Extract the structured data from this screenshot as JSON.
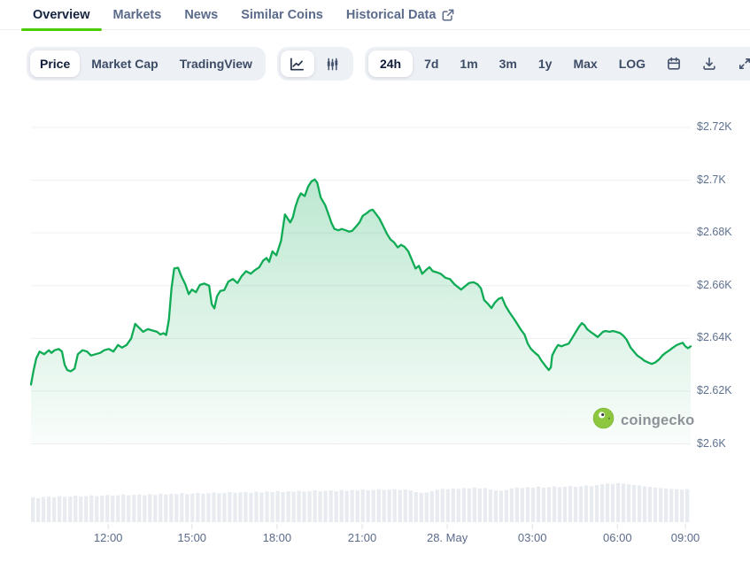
{
  "accent_green": "#4BCC00",
  "nav": {
    "tabs": [
      {
        "label": "Overview",
        "active": true
      },
      {
        "label": "Markets",
        "active": false
      },
      {
        "label": "News",
        "active": false
      },
      {
        "label": "Similar Coins",
        "active": false
      },
      {
        "label": "Historical Data",
        "active": false,
        "external_link": true
      }
    ]
  },
  "toolbar": {
    "metric_tabs": [
      {
        "label": "Price",
        "active": true
      },
      {
        "label": "Market Cap",
        "active": false
      },
      {
        "label": "TradingView",
        "active": false
      }
    ],
    "chart_types": [
      {
        "name": "line-chart",
        "active": true
      },
      {
        "name": "candlestick-chart",
        "active": false
      }
    ],
    "ranges": [
      {
        "label": "24h",
        "active": true
      },
      {
        "label": "7d",
        "active": false
      },
      {
        "label": "1m",
        "active": false
      },
      {
        "label": "3m",
        "active": false
      },
      {
        "label": "1y",
        "active": false
      },
      {
        "label": "Max",
        "active": false
      },
      {
        "label": "LOG",
        "active": false
      }
    ],
    "icon_buttons": [
      "calendar",
      "download",
      "expand"
    ]
  },
  "watermark": {
    "text": "coingecko"
  },
  "chart_data": {
    "type": "line",
    "title": "",
    "currency": "USD",
    "range": "24h",
    "line_color": "#0fab55",
    "fill_color": "#0fab55",
    "volume_color": "#e8ecf1",
    "grid_color": "#eef0f3",
    "ylim": [
      2596,
      2728
    ],
    "y_ticks": [
      "$2.72K",
      "$2.7K",
      "$2.68K",
      "$2.66K",
      "$2.64K",
      "$2.62K",
      "$2.6K"
    ],
    "y_tick_values": [
      2720,
      2700,
      2680,
      2660,
      2640,
      2620,
      2600
    ],
    "x_labels": [
      "12:00",
      "15:00",
      "18:00",
      "21:00",
      "28. May",
      "03:00",
      "06:00",
      "09:00"
    ],
    "x_label_t": [
      0.117,
      0.244,
      0.373,
      0.502,
      0.631,
      0.76,
      0.889,
      0.992
    ],
    "price_series": [
      [
        0.0,
        2622.5
      ],
      [
        0.004,
        2628.0
      ],
      [
        0.008,
        2632.5
      ],
      [
        0.013,
        2635.0
      ],
      [
        0.02,
        2634.0
      ],
      [
        0.027,
        2635.5
      ],
      [
        0.031,
        2634.5
      ],
      [
        0.036,
        2635.5
      ],
      [
        0.042,
        2636.0
      ],
      [
        0.047,
        2635.0
      ],
      [
        0.051,
        2630.0
      ],
      [
        0.055,
        2628.0
      ],
      [
        0.06,
        2627.5
      ],
      [
        0.066,
        2628.5
      ],
      [
        0.071,
        2634.0
      ],
      [
        0.078,
        2635.5
      ],
      [
        0.085,
        2635.0
      ],
      [
        0.091,
        2633.5
      ],
      [
        0.098,
        2634.0
      ],
      [
        0.105,
        2634.5
      ],
      [
        0.111,
        2635.5
      ],
      [
        0.118,
        2636.0
      ],
      [
        0.125,
        2635.0
      ],
      [
        0.132,
        2637.5
      ],
      [
        0.138,
        2636.5
      ],
      [
        0.145,
        2637.5
      ],
      [
        0.152,
        2640.0
      ],
      [
        0.158,
        2645.5
      ],
      [
        0.164,
        2644.0
      ],
      [
        0.17,
        2642.5
      ],
      [
        0.177,
        2643.5
      ],
      [
        0.184,
        2643.0
      ],
      [
        0.191,
        2642.5
      ],
      [
        0.196,
        2641.5
      ],
      [
        0.201,
        2642.0
      ],
      [
        0.205,
        2641.3
      ],
      [
        0.209,
        2647.0
      ],
      [
        0.213,
        2659.0
      ],
      [
        0.217,
        2666.5
      ],
      [
        0.223,
        2666.8
      ],
      [
        0.228,
        2663.5
      ],
      [
        0.234,
        2660.5
      ],
      [
        0.239,
        2656.8
      ],
      [
        0.244,
        2658.5
      ],
      [
        0.25,
        2657.5
      ],
      [
        0.256,
        2660.3
      ],
      [
        0.263,
        2660.8
      ],
      [
        0.27,
        2660.0
      ],
      [
        0.274,
        2653.0
      ],
      [
        0.278,
        2651.4
      ],
      [
        0.282,
        2656.0
      ],
      [
        0.287,
        2658.0
      ],
      [
        0.293,
        2658.3
      ],
      [
        0.299,
        2661.5
      ],
      [
        0.306,
        2662.5
      ],
      [
        0.313,
        2661.0
      ],
      [
        0.319,
        2663.5
      ],
      [
        0.326,
        2665.5
      ],
      [
        0.333,
        2664.5
      ],
      [
        0.34,
        2666.0
      ],
      [
        0.346,
        2667.0
      ],
      [
        0.352,
        2669.5
      ],
      [
        0.357,
        2670.5
      ],
      [
        0.361,
        2669.0
      ],
      [
        0.366,
        2673.0
      ],
      [
        0.372,
        2671.5
      ],
      [
        0.379,
        2677.0
      ],
      [
        0.385,
        2687.0
      ],
      [
        0.389,
        2685.5
      ],
      [
        0.393,
        2684.0
      ],
      [
        0.397,
        2686.0
      ],
      [
        0.401,
        2690.0
      ],
      [
        0.405,
        2693.0
      ],
      [
        0.409,
        2695.0
      ],
      [
        0.415,
        2694.0
      ],
      [
        0.42,
        2697.5
      ],
      [
        0.425,
        2699.5
      ],
      [
        0.43,
        2700.3
      ],
      [
        0.434,
        2699.0
      ],
      [
        0.439,
        2693.5
      ],
      [
        0.446,
        2690.5
      ],
      [
        0.451,
        2687.0
      ],
      [
        0.456,
        2683.5
      ],
      [
        0.46,
        2681.5
      ],
      [
        0.466,
        2681.0
      ],
      [
        0.471,
        2681.5
      ],
      [
        0.477,
        2681.0
      ],
      [
        0.482,
        2680.5
      ],
      [
        0.487,
        2680.8
      ],
      [
        0.493,
        2682.5
      ],
      [
        0.498,
        2684.0
      ],
      [
        0.503,
        2686.5
      ],
      [
        0.509,
        2687.5
      ],
      [
        0.514,
        2688.5
      ],
      [
        0.518,
        2688.8
      ],
      [
        0.522,
        2687.5
      ],
      [
        0.528,
        2685.5
      ],
      [
        0.533,
        2683.0
      ],
      [
        0.54,
        2679.5
      ],
      [
        0.545,
        2677.5
      ],
      [
        0.55,
        2676.5
      ],
      [
        0.556,
        2674.5
      ],
      [
        0.561,
        2675.5
      ],
      [
        0.566,
        2674.8
      ],
      [
        0.572,
        2673.0
      ],
      [
        0.577,
        2670.0
      ],
      [
        0.583,
        2666.5
      ],
      [
        0.588,
        2667.5
      ],
      [
        0.593,
        2664.5
      ],
      [
        0.599,
        2666.0
      ],
      [
        0.604,
        2667.0
      ],
      [
        0.609,
        2665.5
      ],
      [
        0.616,
        2665.0
      ],
      [
        0.621,
        2664.5
      ],
      [
        0.628,
        2663.0
      ],
      [
        0.635,
        2662.5
      ],
      [
        0.642,
        2660.5
      ],
      [
        0.647,
        2659.5
      ],
      [
        0.652,
        2658.5
      ],
      [
        0.659,
        2660.0
      ],
      [
        0.664,
        2661.0
      ],
      [
        0.671,
        2661.3
      ],
      [
        0.677,
        2660.5
      ],
      [
        0.682,
        2659.0
      ],
      [
        0.687,
        2654.5
      ],
      [
        0.693,
        2653.0
      ],
      [
        0.698,
        2651.5
      ],
      [
        0.703,
        2653.5
      ],
      [
        0.709,
        2655.0
      ],
      [
        0.714,
        2655.5
      ],
      [
        0.719,
        2652.5
      ],
      [
        0.725,
        2650.0
      ],
      [
        0.732,
        2647.5
      ],
      [
        0.737,
        2645.5
      ],
      [
        0.742,
        2643.5
      ],
      [
        0.748,
        2641.5
      ],
      [
        0.753,
        2638.0
      ],
      [
        0.758,
        2636.0
      ],
      [
        0.764,
        2634.5
      ],
      [
        0.769,
        2633.5
      ],
      [
        0.774,
        2631.5
      ],
      [
        0.78,
        2629.5
      ],
      [
        0.785,
        2628.0
      ],
      [
        0.788,
        2629.0
      ],
      [
        0.79,
        2633.5
      ],
      [
        0.795,
        2636.0
      ],
      [
        0.799,
        2637.5
      ],
      [
        0.804,
        2637.0
      ],
      [
        0.809,
        2637.5
      ],
      [
        0.815,
        2638.0
      ],
      [
        0.82,
        2640.0
      ],
      [
        0.826,
        2642.5
      ],
      [
        0.831,
        2644.5
      ],
      [
        0.835,
        2645.8
      ],
      [
        0.839,
        2645.0
      ],
      [
        0.843,
        2643.5
      ],
      [
        0.848,
        2642.5
      ],
      [
        0.854,
        2641.5
      ],
      [
        0.859,
        2640.5
      ],
      [
        0.863,
        2641.5
      ],
      [
        0.867,
        2642.5
      ],
      [
        0.871,
        2642.8
      ],
      [
        0.877,
        2642.5
      ],
      [
        0.882,
        2642.8
      ],
      [
        0.887,
        2642.5
      ],
      [
        0.893,
        2642.0
      ],
      [
        0.898,
        2641.0
      ],
      [
        0.903,
        2639.5
      ],
      [
        0.909,
        2636.5
      ],
      [
        0.914,
        2635.0
      ],
      [
        0.919,
        2633.5
      ],
      [
        0.925,
        2632.5
      ],
      [
        0.93,
        2631.5
      ],
      [
        0.936,
        2630.8
      ],
      [
        0.941,
        2630.3
      ],
      [
        0.946,
        2630.8
      ],
      [
        0.952,
        2632.0
      ],
      [
        0.957,
        2633.5
      ],
      [
        0.962,
        2634.5
      ],
      [
        0.968,
        2635.5
      ],
      [
        0.973,
        2636.5
      ],
      [
        0.979,
        2637.5
      ],
      [
        0.984,
        2638.0
      ],
      [
        0.988,
        2638.3
      ],
      [
        0.992,
        2637.0
      ],
      [
        0.996,
        2636.3
      ],
      [
        1.0,
        2637.0
      ]
    ],
    "volume_rel": [
      0.61,
      0.59,
      0.62,
      0.63,
      0.61,
      0.64,
      0.62,
      0.63,
      0.65,
      0.63,
      0.64,
      0.66,
      0.64,
      0.65,
      0.67,
      0.65,
      0.66,
      0.68,
      0.66,
      0.67,
      0.68,
      0.66,
      0.69,
      0.67,
      0.7,
      0.68,
      0.7,
      0.69,
      0.71,
      0.69,
      0.7,
      0.72,
      0.7,
      0.71,
      0.73,
      0.71,
      0.72,
      0.74,
      0.72,
      0.73,
      0.74,
      0.72,
      0.75,
      0.73,
      0.75,
      0.74,
      0.76,
      0.74,
      0.76,
      0.75,
      0.77,
      0.75,
      0.76,
      0.78,
      0.76,
      0.77,
      0.78,
      0.76,
      0.79,
      0.77,
      0.79,
      0.78,
      0.8,
      0.78,
      0.79,
      0.81,
      0.79,
      0.8,
      0.81,
      0.79,
      0.8,
      0.78,
      0.74,
      0.72,
      0.73,
      0.76,
      0.8,
      0.82,
      0.81,
      0.83,
      0.82,
      0.84,
      0.83,
      0.85,
      0.83,
      0.84,
      0.8,
      0.78,
      0.77,
      0.79,
      0.83,
      0.85,
      0.84,
      0.86,
      0.85,
      0.87,
      0.85,
      0.86,
      0.88,
      0.86,
      0.87,
      0.89,
      0.87,
      0.88,
      0.9,
      0.88,
      0.91,
      0.93,
      0.95,
      0.94,
      0.96,
      0.95,
      0.93,
      0.91,
      0.9,
      0.88,
      0.87,
      0.85,
      0.84,
      0.83,
      0.82,
      0.81,
      0.8,
      0.81
    ]
  }
}
